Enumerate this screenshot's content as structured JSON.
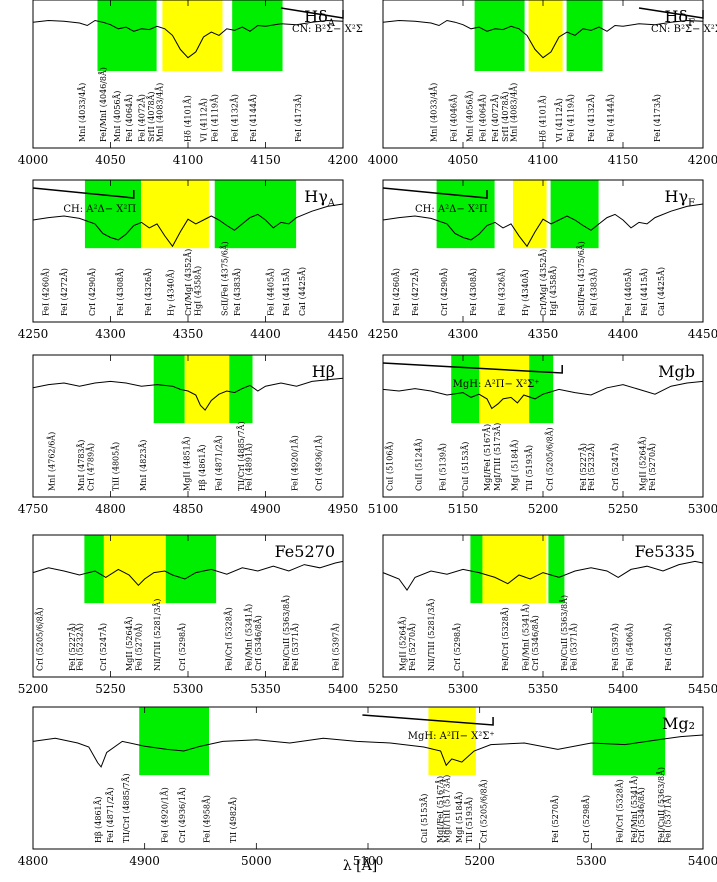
{
  "figure": {
    "xlabel": "λ [Å]",
    "colors": {
      "continuum": "#00ee00",
      "feature": "#ffff00",
      "line": "#000000",
      "background": "#ffffff"
    }
  },
  "chart_data": [
    {
      "type": "line",
      "title": "Hδ_A",
      "xlim": [
        4000,
        4200
      ],
      "xticks": [
        4000,
        4050,
        4100,
        4150,
        4200
      ],
      "bands": [
        {
          "kind": "continuum",
          "range": [
            4041.6,
            4079.75
          ]
        },
        {
          "kind": "feature",
          "range": [
            4083.5,
            4122.25
          ]
        },
        {
          "kind": "continuum",
          "range": [
            4128.5,
            4161.0
          ]
        }
      ],
      "molecule": {
        "label": "CN: B²Σ− X²Σ",
        "from": 4160,
        "to": 4200
      },
      "lines": [
        "MnI (4033/4Å)",
        "FeI/MnI (4046/8Å)",
        "MnI (4056Å)",
        "FeI (4064Å)",
        "FeI (4072Å)",
        "SrII (4078Å)",
        "MnI (4083/4Å)",
        "Hδ (4101Å)",
        "VI (4112Å)",
        "FeI (4119Å)",
        "FeI (4132Å)",
        "FeI (4144Å)",
        "FeI (4173Å)"
      ],
      "line_waves": [
        4033.5,
        4047,
        4056,
        4064,
        4072,
        4078,
        4083.5,
        4101.7,
        4112,
        4119,
        4132,
        4144,
        4173
      ],
      "x": [
        4000,
        4010,
        4020,
        4030,
        4035,
        4040,
        4045,
        4050,
        4055,
        4060,
        4065,
        4070,
        4075,
        4080,
        4085,
        4090,
        4095,
        4100,
        4105,
        4110,
        4115,
        4120,
        4125,
        4130,
        4135,
        4140,
        4145,
        4150,
        4160,
        4170,
        4180,
        4190,
        4200
      ],
      "y": [
        0.78,
        0.8,
        0.79,
        0.77,
        0.74,
        0.8,
        0.78,
        0.75,
        0.7,
        0.72,
        0.67,
        0.7,
        0.69,
        0.73,
        0.7,
        0.62,
        0.45,
        0.35,
        0.42,
        0.6,
        0.66,
        0.62,
        0.7,
        0.68,
        0.72,
        0.67,
        0.74,
        0.73,
        0.76,
        0.75,
        0.78,
        0.8,
        0.79
      ]
    },
    {
      "type": "line",
      "title": "Hδ_F",
      "xlim": [
        4000,
        4200
      ],
      "xticks": [
        4000,
        4050,
        4100,
        4150,
        4200
      ],
      "bands": [
        {
          "kind": "continuum",
          "range": [
            4057.25,
            4088.5
          ]
        },
        {
          "kind": "feature",
          "range": [
            4091.0,
            4112.25
          ]
        },
        {
          "kind": "continuum",
          "range": [
            4114.75,
            4137.25
          ]
        }
      ],
      "molecule": {
        "label": "CN: B²Σ− X²Σ",
        "from": 4160,
        "to": 4200
      },
      "lines": [
        "MnI (4033/4Å)",
        "FeI (4046Å)",
        "MnI (4056Å)",
        "FeI (4064Å)",
        "FeI (4072Å)",
        "SrII (4078Å)",
        "MnI (4083/4Å)",
        "Hδ (4101Å)",
        "VI (4112Å)",
        "FeI (4119Å)",
        "FeI (4132Å)",
        "FeI (4144Å)",
        "FeI (4173Å)"
      ],
      "line_waves": [
        4033.5,
        4046,
        4056,
        4064,
        4072,
        4078,
        4083.5,
        4101.7,
        4112,
        4119,
        4132,
        4144,
        4173
      ],
      "x": [
        4000,
        4010,
        4020,
        4030,
        4035,
        4040,
        4045,
        4050,
        4055,
        4060,
        4065,
        4070,
        4075,
        4080,
        4085,
        4090,
        4095,
        4100,
        4105,
        4110,
        4115,
        4120,
        4125,
        4130,
        4135,
        4140,
        4145,
        4150,
        4160,
        4170,
        4180,
        4190,
        4200
      ],
      "y": [
        0.78,
        0.8,
        0.79,
        0.77,
        0.74,
        0.8,
        0.78,
        0.75,
        0.7,
        0.72,
        0.67,
        0.7,
        0.69,
        0.73,
        0.7,
        0.62,
        0.45,
        0.35,
        0.42,
        0.6,
        0.66,
        0.62,
        0.7,
        0.68,
        0.72,
        0.67,
        0.74,
        0.73,
        0.76,
        0.75,
        0.78,
        0.8,
        0.79
      ]
    },
    {
      "type": "line",
      "title": "Hγ_A",
      "xlim": [
        4250,
        4450
      ],
      "xticks": [
        4250,
        4300,
        4350,
        4400,
        4450
      ],
      "bands": [
        {
          "kind": "continuum",
          "range": [
            4283.5,
            4319.75
          ]
        },
        {
          "kind": "feature",
          "range": [
            4319.75,
            4363.5
          ]
        },
        {
          "kind": "continuum",
          "range": [
            4367.25,
            4419.75
          ]
        }
      ],
      "molecule": {
        "label": "CH: A²Δ− X²Π",
        "from": 4250,
        "to": 4315
      },
      "lines": [
        "FeI (4260Å)",
        "FeI (4272Å)",
        "CrI (4290Å)",
        "FeI (4308Å)",
        "FeI (4326Å)",
        "Hγ (4340Å)",
        "CrI/MgI (4352Å)",
        "HgI (4358Å)",
        "ScII/FeI (4375/6Å)",
        "FeI (4383Å)",
        "FeI (4405Å)",
        "FeI (4415Å)",
        "CaI (4425Å)"
      ],
      "line_waves": [
        4260,
        4272,
        4290,
        4308,
        4326,
        4340.5,
        4352,
        4358,
        4375.5,
        4383.5,
        4405,
        4415,
        4425.5
      ],
      "x": [
        4250,
        4260,
        4270,
        4280,
        4290,
        4295,
        4300,
        4305,
        4310,
        4315,
        4320,
        4325,
        4330,
        4335,
        4340,
        4345,
        4350,
        4355,
        4360,
        4365,
        4370,
        4375,
        4380,
        4385,
        4390,
        4395,
        4400,
        4405,
        4410,
        4415,
        4420,
        4430,
        4440,
        4450
      ],
      "y": [
        0.55,
        0.58,
        0.6,
        0.57,
        0.5,
        0.38,
        0.33,
        0.3,
        0.37,
        0.48,
        0.52,
        0.45,
        0.5,
        0.35,
        0.22,
        0.4,
        0.56,
        0.5,
        0.55,
        0.6,
        0.55,
        0.48,
        0.42,
        0.5,
        0.58,
        0.62,
        0.55,
        0.45,
        0.52,
        0.5,
        0.58,
        0.66,
        0.72,
        0.75
      ]
    },
    {
      "type": "line",
      "title": "Hγ_F",
      "xlim": [
        4250,
        4450
      ],
      "xticks": [
        4250,
        4300,
        4350,
        4400,
        4450
      ],
      "bands": [
        {
          "kind": "continuum",
          "range": [
            4283.5,
            4319.75
          ]
        },
        {
          "kind": "feature",
          "range": [
            4331.25,
            4352.25
          ]
        },
        {
          "kind": "continuum",
          "range": [
            4354.75,
            4384.75
          ]
        }
      ],
      "molecule": {
        "label": "CH: A²Δ− X²Π",
        "from": 4250,
        "to": 4315
      },
      "lines": [
        "FeI (4260Å)",
        "FeI (4272Å)",
        "CrI (4290Å)",
        "FeI (4308Å)",
        "FeI (4326Å)",
        "Hγ (4340Å)",
        "CrI/MgI (4352Å)",
        "HgI (4358Å)",
        "ScII/FeI (4375/6Å)",
        "FeI (4383Å)",
        "FeI (4405Å)",
        "FeI (4415Å)",
        "CaI (4425Å)"
      ],
      "line_waves": [
        4260,
        4272,
        4290,
        4308,
        4326,
        4340.5,
        4352,
        4358,
        4375.5,
        4383.5,
        4405,
        4415,
        4425.5
      ],
      "x": [
        4250,
        4260,
        4270,
        4280,
        4290,
        4295,
        4300,
        4305,
        4310,
        4315,
        4320,
        4325,
        4330,
        4335,
        4340,
        4345,
        4350,
        4355,
        4360,
        4365,
        4370,
        4375,
        4380,
        4385,
        4390,
        4395,
        4400,
        4405,
        4410,
        4415,
        4420,
        4430,
        4440,
        4450
      ],
      "y": [
        0.55,
        0.58,
        0.6,
        0.57,
        0.5,
        0.38,
        0.33,
        0.3,
        0.37,
        0.48,
        0.52,
        0.45,
        0.5,
        0.35,
        0.22,
        0.4,
        0.56,
        0.5,
        0.55,
        0.6,
        0.55,
        0.48,
        0.42,
        0.5,
        0.58,
        0.62,
        0.55,
        0.45,
        0.52,
        0.5,
        0.58,
        0.66,
        0.72,
        0.75
      ]
    },
    {
      "type": "line",
      "title": "Hβ",
      "xlim": [
        4750,
        4950
      ],
      "xticks": [
        4750,
        4800,
        4850,
        4900,
        4950
      ],
      "bands": [
        {
          "kind": "continuum",
          "range": [
            4827.875,
            4847.875
          ]
        },
        {
          "kind": "feature",
          "range": [
            4847.875,
            4876.625
          ]
        },
        {
          "kind": "continuum",
          "range": [
            4876.625,
            4891.625
          ]
        }
      ],
      "lines": [
        "MnI (4762/6Å)",
        "MnI (4783Å)",
        "CrI (4789Å)",
        "TiII (4805Å)",
        "MnI (4823Å)",
        "MgII (4851Å)",
        "Hβ (4861Å)",
        "FeI (4871/2Å)",
        "TiI/CrI (4885/7Å)",
        "FeI (4891Å)",
        "FeI (4920/1Å)",
        "CrI (4936/1Å)"
      ],
      "line_waves": [
        4764,
        4783,
        4789,
        4805,
        4823,
        4851,
        4861,
        4871.5,
        4886,
        4891,
        4920.5,
        4936
      ],
      "x": [
        4750,
        4760,
        4770,
        4780,
        4790,
        4800,
        4810,
        4820,
        4830,
        4840,
        4845,
        4850,
        4855,
        4858,
        4861,
        4865,
        4870,
        4875,
        4880,
        4885,
        4890,
        4895,
        4900,
        4910,
        4920,
        4930,
        4940,
        4950
      ],
      "y": [
        0.64,
        0.68,
        0.7,
        0.66,
        0.7,
        0.72,
        0.7,
        0.66,
        0.68,
        0.66,
        0.62,
        0.6,
        0.55,
        0.42,
        0.36,
        0.48,
        0.56,
        0.6,
        0.58,
        0.63,
        0.67,
        0.6,
        0.66,
        0.7,
        0.66,
        0.72,
        0.74,
        0.76
      ]
    },
    {
      "type": "line",
      "title": "Mgb",
      "xlim": [
        5100,
        5300
      ],
      "xticks": [
        5100,
        5150,
        5200,
        5250,
        5300
      ],
      "bands": [
        {
          "kind": "continuum",
          "range": [
            5142.625,
            5161.375
          ]
        },
        {
          "kind": "feature",
          "range": [
            5160.125,
            5192.625
          ]
        },
        {
          "kind": "continuum",
          "range": [
            5191.375,
            5206.375
          ]
        }
      ],
      "molecule": {
        "label": "MgH: A²Π− X²Σ⁺",
        "from": 5100,
        "to": 5212
      },
      "lines": [
        "CuI (5106Å)",
        "CuII (5124Å)",
        "FeI (5139Å)",
        "CuI (5153Å)",
        "MgI/FeI (5167Å)",
        "MgI/TiII (5173Å)",
        "MgI (5184Å)",
        "TiI (5193Å)",
        "CrI (5205/6/8Å)",
        "FeI (5227Å)",
        "FeI (5232Å)",
        "CrI (5247Å)",
        "MgII (5264Å)",
        "FeI (5270Å)"
      ],
      "line_waves": [
        5106,
        5124,
        5139,
        5153,
        5167,
        5173,
        5184,
        5193,
        5206,
        5227,
        5232,
        5247,
        5264,
        5270
      ],
      "x": [
        5100,
        5110,
        5120,
        5130,
        5140,
        5150,
        5155,
        5160,
        5165,
        5168,
        5172,
        5175,
        5180,
        5184,
        5188,
        5195,
        5200,
        5210,
        5220,
        5230,
        5240,
        5250,
        5260,
        5270,
        5280,
        5290,
        5300
      ],
      "y": [
        0.62,
        0.6,
        0.63,
        0.6,
        0.55,
        0.58,
        0.52,
        0.56,
        0.5,
        0.38,
        0.44,
        0.5,
        0.52,
        0.45,
        0.55,
        0.5,
        0.56,
        0.62,
        0.58,
        0.55,
        0.64,
        0.68,
        0.62,
        0.56,
        0.66,
        0.7,
        0.72
      ]
    },
    {
      "type": "line",
      "title": "Fe5270",
      "xlim": [
        5200,
        5400
      ],
      "xticks": [
        5200,
        5250,
        5300,
        5350,
        5400
      ],
      "bands": [
        {
          "kind": "continuum",
          "range": [
            5233.15,
            5248.15
          ]
        },
        {
          "kind": "feature",
          "range": [
            5245.65,
            5285.65
          ]
        },
        {
          "kind": "continuum",
          "range": [
            5285.65,
            5318.15
          ]
        }
      ],
      "lines": [
        "CrI (5205/6/8Å)",
        "FeI (5227Å)",
        "FeI (5232Å)",
        "CrI (5247Å)",
        "MgII (5264Å)",
        "FeI (5270Å)",
        "NiI/TiII (5281/3Å)",
        "CrI (5298Å)",
        "FeI/CrI (5328Å)",
        "FeI/MnI (5341Å)",
        "CrI (5346/8Å)",
        "FeI/CuII (5363/8Å)",
        "FeI (5371Å)",
        "FeI (5397Å)"
      ],
      "line_waves": [
        5206,
        5227,
        5232,
        5247,
        5264,
        5270,
        5282,
        5298,
        5328,
        5341,
        5347,
        5365,
        5371,
        5397
      ],
      "x": [
        5200,
        5210,
        5220,
        5230,
        5240,
        5247,
        5255,
        5262,
        5268,
        5272,
        5278,
        5285,
        5290,
        5298,
        5305,
        5315,
        5325,
        5335,
        5345,
        5355,
        5365,
        5375,
        5385,
        5395,
        5400
      ],
      "y": [
        0.58,
        0.64,
        0.6,
        0.55,
        0.6,
        0.52,
        0.62,
        0.55,
        0.42,
        0.5,
        0.58,
        0.6,
        0.55,
        0.5,
        0.58,
        0.62,
        0.56,
        0.64,
        0.6,
        0.66,
        0.6,
        0.68,
        0.64,
        0.7,
        0.72
      ]
    },
    {
      "type": "line",
      "title": "Fe5335",
      "xlim": [
        5250,
        5450
      ],
      "xticks": [
        5250,
        5300,
        5350,
        5400,
        5450
      ],
      "bands": [
        {
          "kind": "continuum",
          "range": [
            5304.625,
            5315.875
          ]
        },
        {
          "kind": "feature",
          "range": [
            5312.125,
            5352.125
          ]
        },
        {
          "kind": "continuum",
          "range": [
            5353.375,
            5363.375
          ]
        }
      ],
      "lines": [
        "MgII (5264Å)",
        "FeI (5270Å)",
        "NiI/TiII (5281/3Å)",
        "CrI (5298Å)",
        "FeI/CrI (5328Å)",
        "FeI/MnI (5341Å)",
        "CrI (5346/8Å)",
        "FeI/CuII (5363/8Å)",
        "FeI (5371Å)",
        "FeI (5397Å)",
        "FeI (5406Å)",
        "FeI (5430Å)"
      ],
      "line_waves": [
        5264,
        5270,
        5282,
        5298,
        5328,
        5341,
        5347,
        5365,
        5371,
        5397,
        5406,
        5430
      ],
      "x": [
        5250,
        5260,
        5265,
        5270,
        5280,
        5290,
        5300,
        5310,
        5320,
        5328,
        5335,
        5342,
        5350,
        5360,
        5370,
        5380,
        5390,
        5397,
        5405,
        5415,
        5425,
        5435,
        5445,
        5450
      ],
      "y": [
        0.58,
        0.5,
        0.36,
        0.52,
        0.6,
        0.56,
        0.62,
        0.58,
        0.52,
        0.44,
        0.55,
        0.5,
        0.58,
        0.52,
        0.6,
        0.64,
        0.6,
        0.52,
        0.62,
        0.66,
        0.6,
        0.68,
        0.72,
        0.7
      ]
    },
    {
      "type": "line",
      "title": "Mg₂",
      "xlim": [
        4800,
        5400
      ],
      "xticks": [
        4800,
        4900,
        5000,
        5100,
        5200,
        5300,
        5400
      ],
      "bands": [
        {
          "kind": "continuum",
          "range": [
            4895.125,
            4957.625
          ]
        },
        {
          "kind": "feature",
          "range": [
            5154.125,
            5196.625
          ]
        },
        {
          "kind": "continuum",
          "range": [
            5301.125,
            5366.125
          ]
        }
      ],
      "molecule": {
        "label": "MgH: A²Π− X²Σ⁺",
        "from": 5095,
        "to": 5212
      },
      "lines": [
        "Hβ (4861Å)",
        "FeI (4871/2Å)",
        "TiI/CrI (4885/7Å)",
        "FeI (4920/1Å)",
        "CrI (4936/1Å)",
        "FeI (4958Å)",
        "TiI (4982Å)",
        "CuI (5153Å)",
        "MgI/FeI (5167Å)",
        "MgI/TiII (5173Å)",
        "MgI (5184Å)",
        "TiI (5193Å)",
        "CrI (5205/6/8Å)",
        "FeI (5270Å)",
        "CrI (5298Å)",
        "FeI/CrI (5328Å)",
        "FeI/MnI (5341Å)",
        "CrI (5346/8Å)",
        "FeI/CuII (5363/8Å)",
        "FeI (5371Å)"
      ],
      "line_waves": [
        4861,
        4871.5,
        4886,
        4920.5,
        4936,
        4958,
        4982,
        5153,
        5167,
        5173,
        5184,
        5193,
        5206,
        5270,
        5298,
        5328,
        5341,
        5347,
        5365,
        5371
      ],
      "x": [
        4800,
        4820,
        4840,
        4850,
        4858,
        4861,
        4866,
        4880,
        4900,
        4920,
        4935,
        4950,
        4970,
        5000,
        5030,
        5060,
        5090,
        5120,
        5150,
        5165,
        5170,
        5175,
        5184,
        5195,
        5210,
        5240,
        5270,
        5300,
        5330,
        5360,
        5380,
        5400
      ],
      "y": [
        0.62,
        0.66,
        0.6,
        0.55,
        0.35,
        0.3,
        0.48,
        0.62,
        0.56,
        0.52,
        0.5,
        0.56,
        0.62,
        0.64,
        0.6,
        0.66,
        0.62,
        0.6,
        0.55,
        0.5,
        0.32,
        0.4,
        0.36,
        0.5,
        0.58,
        0.6,
        0.52,
        0.6,
        0.58,
        0.64,
        0.68,
        0.7
      ]
    }
  ]
}
